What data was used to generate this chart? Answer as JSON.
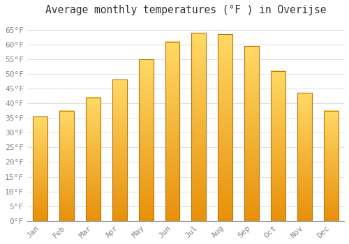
{
  "title": "Average monthly temperatures (°F ) in Overijse",
  "months": [
    "Jan",
    "Feb",
    "Mar",
    "Apr",
    "May",
    "Jun",
    "Jul",
    "Aug",
    "Sep",
    "Oct",
    "Nov",
    "Dec"
  ],
  "values": [
    35.5,
    37.5,
    42,
    48,
    55,
    61,
    64,
    63.5,
    59.5,
    51,
    43.5,
    37.5
  ],
  "bar_color_top": "#FFD966",
  "bar_color_bottom": "#E8900A",
  "bar_edge_color": "#B8760A",
  "ylim": [
    0,
    68
  ],
  "yticks": [
    0,
    5,
    10,
    15,
    20,
    25,
    30,
    35,
    40,
    45,
    50,
    55,
    60,
    65
  ],
  "ytick_labels": [
    "0°F",
    "5°F",
    "10°F",
    "15°F",
    "20°F",
    "25°F",
    "30°F",
    "35°F",
    "40°F",
    "45°F",
    "50°F",
    "55°F",
    "60°F",
    "65°F"
  ],
  "background_color": "#FFFFFF",
  "grid_color": "#E0E0E0",
  "title_fontsize": 10.5,
  "tick_fontsize": 8,
  "tick_color": "#888888",
  "font_family": "monospace",
  "bar_width": 0.55
}
